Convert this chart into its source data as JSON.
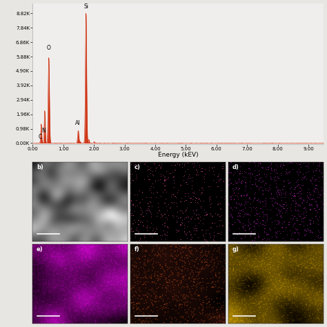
{
  "xlabel": "Energy (kEV)",
  "xlim": [
    0.0,
    9.5
  ],
  "ytick_labels": [
    "0.00K",
    "0.98K",
    "1.96K",
    "2.94K",
    "3.92K",
    "4.90K",
    "5.88K",
    "6.86K",
    "7.84K",
    "8.82K"
  ],
  "ytick_vals": [
    0,
    0.98,
    1.96,
    2.94,
    3.92,
    4.9,
    5.88,
    6.86,
    7.84,
    8.82
  ],
  "xtick_vals": [
    0.0,
    1.0,
    2.0,
    3.0,
    4.0,
    5.0,
    6.0,
    7.0,
    8.0,
    9.0
  ],
  "xtick_labels": [
    "0.00",
    "1.00",
    "2.00",
    "3.00",
    "4.00",
    "5.00",
    "6.00",
    "7.00",
    "8.00",
    "9.00"
  ],
  "spectrum_color": "#cc2200",
  "bg_color": "#f0eeec",
  "fig_bg": "#e8e6e2",
  "panel_labels": [
    "b)",
    "c)",
    "d)",
    "e)",
    "f)",
    "g)"
  ],
  "label_color": "#ffffff",
  "elements": [
    "C",
    "N",
    "O",
    "Al",
    "Si"
  ],
  "elem_x": [
    0.25,
    0.355,
    0.52,
    1.48,
    1.74
  ],
  "elem_y": [
    0.22,
    0.65,
    6.25,
    1.15,
    9.05
  ]
}
